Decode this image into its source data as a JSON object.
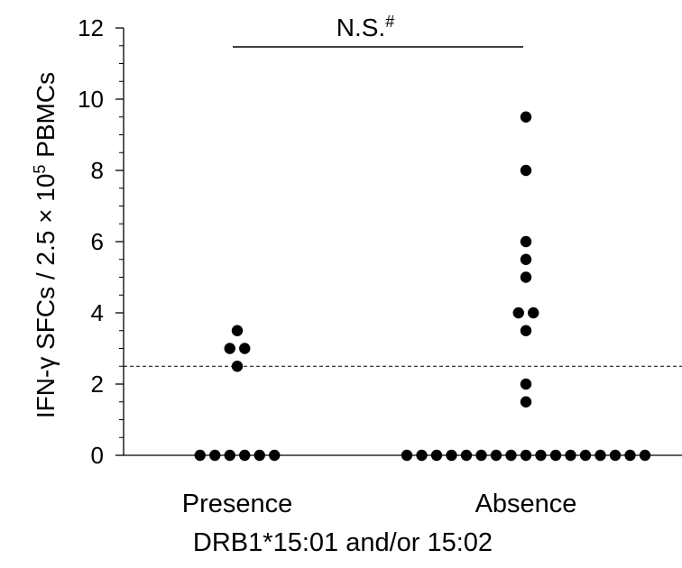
{
  "chart_data": {
    "type": "scatter",
    "ylabel": {
      "main": "IFN-γ SFCs / 2.5 × 10",
      "superscript": "5",
      "tail": " PBMCs"
    },
    "xlabel": "DRB1*15:01 and/or 15:02",
    "categories": [
      "Presence",
      "Absence"
    ],
    "ylim": [
      0,
      12
    ],
    "yticks": [
      "0",
      "2",
      "4",
      "6",
      "8",
      "10",
      "12"
    ],
    "threshold": 2.5,
    "annotation": {
      "text": "N.S.",
      "superscript": "#"
    },
    "series": [
      {
        "category": "Presence",
        "values": [
          3.5,
          3,
          3,
          2.5,
          0,
          0,
          0,
          0,
          0,
          0
        ]
      },
      {
        "category": "Absence",
        "values": [
          9.5,
          8,
          6,
          5.5,
          5,
          4,
          4,
          3.5,
          2,
          1.5,
          0,
          0,
          0,
          0,
          0,
          0,
          0,
          0,
          0,
          0,
          0,
          0,
          0,
          0,
          0,
          0,
          0
        ]
      }
    ]
  },
  "colors": {
    "marker": "#000000",
    "axis": "#000000",
    "threshold": "#000000"
  }
}
